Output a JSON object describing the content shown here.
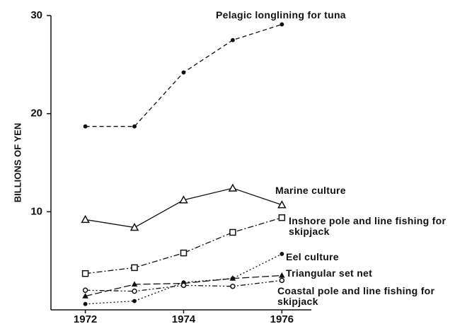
{
  "chart_data": {
    "type": "line",
    "y_label": "BILLIONS OF YEN",
    "x": [
      1972,
      1973,
      1974,
      1975,
      1976
    ],
    "xlim": [
      1971.3,
      1976.6
    ],
    "xticks": [
      1972,
      1974,
      1976
    ],
    "ylim": [
      0,
      30
    ],
    "yticks": [
      10,
      20,
      30
    ],
    "grid": false,
    "series": [
      {
        "name": "Pelagic longlining for tuna",
        "color": "#111111",
        "style": "dashed",
        "marker": "dot",
        "values": [
          18.7,
          18.7,
          24.2,
          27.5,
          29.1
        ]
      },
      {
        "name": "Marine culture",
        "color": "#111111",
        "style": "solid",
        "marker": "triangle",
        "values": [
          9.2,
          8.4,
          11.2,
          12.4,
          10.7
        ]
      },
      {
        "name": "Inshore pole and line fishing for skipjack",
        "color": "#111111",
        "style": "dashdot",
        "marker": "square",
        "values": [
          3.7,
          4.3,
          5.8,
          7.9,
          9.4
        ]
      },
      {
        "name": "Eel culture",
        "color": "#111111",
        "style": "dotted",
        "marker": "dot",
        "values": [
          0.6,
          0.9,
          2.8,
          3.2,
          5.7
        ]
      },
      {
        "name": "Triangular set net",
        "color": "#111111",
        "style": "longdash",
        "marker": "triangle",
        "values": [
          1.4,
          2.6,
          2.7,
          3.2,
          3.5
        ]
      },
      {
        "name": "Coastal pole and line fishing for skipjack",
        "color": "#111111",
        "style": "dashdotdot",
        "marker": "circle",
        "values": [
          2.0,
          1.9,
          2.5,
          2.4,
          3.0
        ]
      }
    ]
  }
}
